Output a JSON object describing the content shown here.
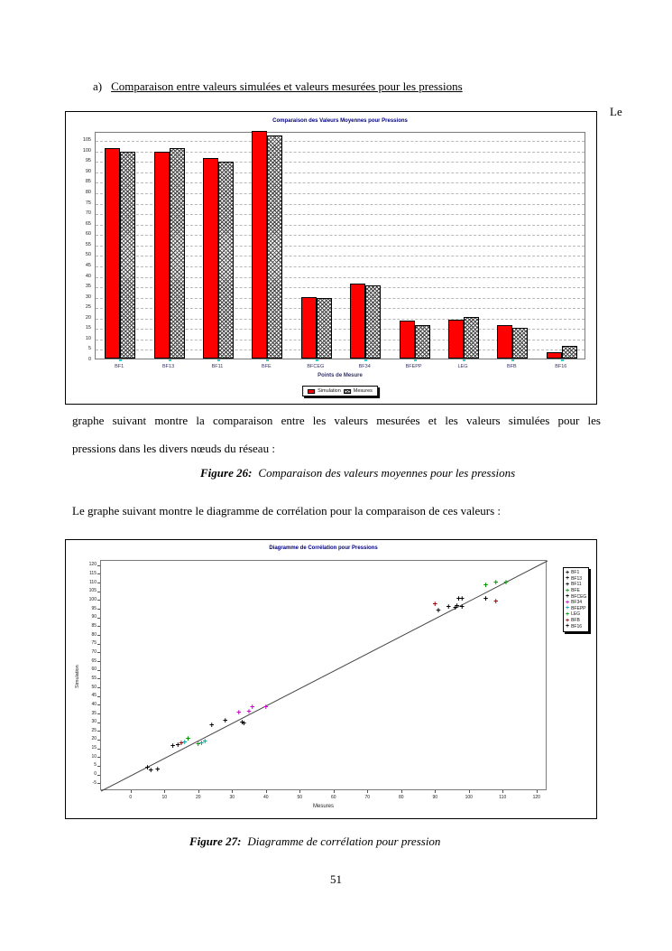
{
  "page": {
    "heading_prefix": "a)",
    "heading": "Comparaison entre valeurs simulées et valeurs mesurées pour les pressions",
    "inline_word": "Le",
    "paragraph1_line1": "graphe suivant montre la comparaison entre les valeurs mesurées et les valeurs simulées pour les",
    "paragraph1_line2": "pressions dans les divers nœuds du réseau :",
    "figure26_label": "Figure 26:",
    "figure26_caption": "Comparaison des valeurs moyennes pour les pressions",
    "paragraph2": "Le graphe suivant montre le diagramme de corrélation pour la comparaison de ces valeurs :",
    "figure27_label": "Figure 27:",
    "figure27_caption": "Diagramme de corrélation pour pression",
    "page_number": "51"
  },
  "colors": {
    "simulation_bar": "#ff0000",
    "chart_title": "#000080",
    "grid": "#b8b8b8"
  },
  "chart_data": [
    {
      "type": "bar",
      "title": "Comparaison des Valeurs Moyennes pour Pressions",
      "xlabel": "Points de Mesure",
      "categories": [
        "BF1",
        "BF13",
        "BF11",
        "BFE",
        "BFCEG",
        "BF34",
        "BFEPP",
        "LEG",
        "BFB",
        "BF16"
      ],
      "series": [
        {
          "name": "Simulation",
          "style": "red",
          "values": [
            101,
            99,
            96,
            110,
            29.5,
            36,
            18,
            18.5,
            16,
            3
          ]
        },
        {
          "name": "Mesures",
          "style": "hatch",
          "values": [
            99,
            101,
            94.5,
            107,
            29,
            35,
            16,
            20,
            14.5,
            6
          ]
        }
      ],
      "ylim": [
        0,
        109
      ],
      "ytick_step": 5,
      "ytick_max": 105,
      "grid": true,
      "legend_position": "bottom"
    },
    {
      "type": "scatter",
      "title": "Diagramme de Corrélation pour Pressions",
      "xlabel": "Mesures",
      "ylabel": "Simulation",
      "xlim": [
        -9,
        123
      ],
      "ylim": [
        -9,
        123
      ],
      "xticks": {
        "min": 0,
        "max": 120,
        "step": 10
      },
      "yticks": {
        "min": -5,
        "max": 120,
        "step": 5
      },
      "identity_line": true,
      "legend_position": "right",
      "series": [
        {
          "name": "BF1",
          "color": "#000000",
          "points": [
            [
              91,
              94
            ],
            [
              94,
              96
            ],
            [
              96,
              95.5
            ]
          ]
        },
        {
          "name": "BF13",
          "color": "#000000",
          "points": [
            [
              96.5,
              96.5
            ],
            [
              97,
              101
            ],
            [
              98,
              100.5
            ]
          ]
        },
        {
          "name": "BF11",
          "color": "#000000",
          "points": [
            [
              98,
              96
            ],
            [
              105,
              101
            ]
          ]
        },
        {
          "name": "BFE",
          "color": "#009900",
          "points": [
            [
              105,
              108.5
            ],
            [
              108,
              110
            ],
            [
              111,
              110
            ]
          ]
        },
        {
          "name": "BFCEG",
          "color": "#000000",
          "points": [
            [
              24,
              28.5
            ],
            [
              28,
              31
            ],
            [
              33,
              30
            ],
            [
              33.5,
              29.5
            ]
          ]
        },
        {
          "name": "BF34",
          "color": "#cc00cc",
          "points": [
            [
              32,
              35.5
            ],
            [
              35,
              36
            ],
            [
              36,
              38.5
            ],
            [
              40,
              38.5
            ]
          ]
        },
        {
          "name": "BFEPP",
          "color": "#00aaaa",
          "points": [
            [
              16,
              18.5
            ],
            [
              21,
              18
            ],
            [
              22,
              19
            ]
          ]
        },
        {
          "name": "LEG",
          "color": "#009900",
          "points": [
            [
              17,
              20.5
            ],
            [
              20,
              17.5
            ]
          ]
        },
        {
          "name": "BFB",
          "color": "#990000",
          "points": [
            [
              90,
              97.5
            ],
            [
              108,
              99
            ],
            [
              15,
              18
            ]
          ]
        },
        {
          "name": "BF16",
          "color": "#000000",
          "points": [
            [
              5,
              4
            ],
            [
              6,
              2.5
            ],
            [
              8,
              3
            ],
            [
              12.5,
              16.5
            ],
            [
              14,
              17
            ]
          ]
        }
      ]
    }
  ]
}
